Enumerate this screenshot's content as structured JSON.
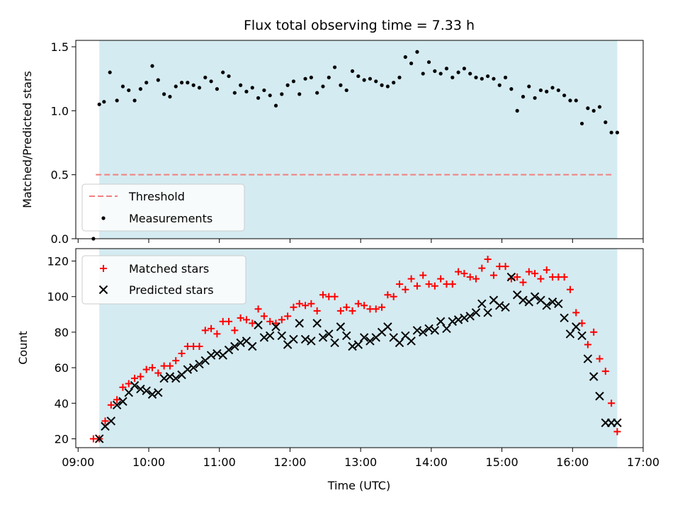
{
  "chart_data": {
    "type": "scatter",
    "title": "Flux total observing time = 7.33 h",
    "xlabel": "Time (UTC)",
    "x_ticks": [
      "09:00",
      "10:00",
      "11:00",
      "12:00",
      "13:00",
      "14:00",
      "15:00",
      "16:00",
      "17:00"
    ],
    "xlim_hours": [
      8.967,
      17.0
    ],
    "observing_window": {
      "start": "09:18",
      "end": "16:38",
      "color": "#d4ebf1"
    },
    "panels": [
      {
        "ylabel": "Matched/Predicted stars",
        "ylim": [
          0,
          1.55
        ],
        "y_ticks": [
          "0.0",
          "0.5",
          "1.0",
          "1.5"
        ],
        "legend_position": "lower-left",
        "series": [
          {
            "name": "Threshold",
            "kind": "dashed-line",
            "color": "#f08080",
            "x_start": "09:15",
            "x_end": "16:35",
            "y": 0.5
          },
          {
            "name": "Measurements",
            "kind": "dot",
            "color": "#000000",
            "x": [
              "09:13",
              "09:18",
              "09:22",
              "09:27",
              "09:33",
              "09:38",
              "09:43",
              "09:48",
              "09:53",
              "09:58",
              "10:03",
              "10:08",
              "10:13",
              "10:18",
              "10:23",
              "10:28",
              "10:33",
              "10:38",
              "10:43",
              "10:48",
              "10:53",
              "10:58",
              "11:03",
              "11:08",
              "11:13",
              "11:18",
              "11:23",
              "11:28",
              "11:33",
              "11:38",
              "11:43",
              "11:48",
              "11:53",
              "11:58",
              "12:03",
              "12:08",
              "12:13",
              "12:18",
              "12:23",
              "12:28",
              "12:33",
              "12:38",
              "12:43",
              "12:48",
              "12:53",
              "12:58",
              "13:03",
              "13:08",
              "13:13",
              "13:18",
              "13:23",
              "13:28",
              "13:33",
              "13:38",
              "13:43",
              "13:48",
              "13:53",
              "13:58",
              "14:03",
              "14:08",
              "14:13",
              "14:18",
              "14:23",
              "14:28",
              "14:33",
              "14:38",
              "14:43",
              "14:48",
              "14:53",
              "14:58",
              "15:03",
              "15:08",
              "15:13",
              "15:18",
              "15:23",
              "15:28",
              "15:33",
              "15:38",
              "15:43",
              "15:48",
              "15:53",
              "15:58",
              "16:03",
              "16:08",
              "16:13",
              "16:18",
              "16:23",
              "16:28",
              "16:33",
              "16:38"
            ],
            "y": [
              0.0,
              1.05,
              1.07,
              1.3,
              1.08,
              1.19,
              1.16,
              1.08,
              1.17,
              1.22,
              1.35,
              1.24,
              1.13,
              1.11,
              1.19,
              1.22,
              1.22,
              1.2,
              1.18,
              1.26,
              1.23,
              1.17,
              1.3,
              1.27,
              1.14,
              1.2,
              1.15,
              1.18,
              1.1,
              1.16,
              1.12,
              1.04,
              1.13,
              1.2,
              1.23,
              1.13,
              1.25,
              1.26,
              1.14,
              1.19,
              1.26,
              1.34,
              1.2,
              1.16,
              1.31,
              1.27,
              1.24,
              1.25,
              1.23,
              1.2,
              1.19,
              1.22,
              1.26,
              1.42,
              1.37,
              1.46,
              1.29,
              1.38,
              1.31,
              1.29,
              1.33,
              1.26,
              1.3,
              1.33,
              1.29,
              1.26,
              1.25,
              1.27,
              1.25,
              1.2,
              1.26,
              1.17,
              1.0,
              1.11,
              1.19,
              1.1,
              1.16,
              1.15,
              1.18,
              1.16,
              1.12,
              1.08,
              1.08,
              0.9,
              1.02,
              1.0,
              1.03,
              0.91,
              0.83,
              0.83
            ]
          }
        ]
      },
      {
        "ylabel": "Count",
        "ylim": [
          15,
          127
        ],
        "y_ticks": [
          "20",
          "40",
          "60",
          "80",
          "100",
          "120"
        ],
        "legend_position": "upper-left",
        "series": [
          {
            "name": "Matched stars",
            "kind": "plus",
            "color": "#ff0000",
            "x": [
              "09:13",
              "09:18",
              "09:23",
              "09:28",
              "09:33",
              "09:38",
              "09:43",
              "09:48",
              "09:53",
              "09:58",
              "10:03",
              "10:08",
              "10:13",
              "10:18",
              "10:23",
              "10:28",
              "10:33",
              "10:38",
              "10:43",
              "10:48",
              "10:53",
              "10:58",
              "11:03",
              "11:08",
              "11:13",
              "11:18",
              "11:23",
              "11:28",
              "11:33",
              "11:38",
              "11:43",
              "11:48",
              "11:53",
              "11:58",
              "12:03",
              "12:08",
              "12:13",
              "12:18",
              "12:23",
              "12:28",
              "12:33",
              "12:38",
              "12:43",
              "12:48",
              "12:53",
              "12:58",
              "13:03",
              "13:08",
              "13:13",
              "13:18",
              "13:23",
              "13:28",
              "13:33",
              "13:38",
              "13:43",
              "13:48",
              "13:53",
              "13:58",
              "14:03",
              "14:08",
              "14:13",
              "14:18",
              "14:23",
              "14:28",
              "14:33",
              "14:38",
              "14:43",
              "14:48",
              "14:53",
              "14:58",
              "15:03",
              "15:08",
              "15:13",
              "15:18",
              "15:23",
              "15:28",
              "15:33",
              "15:38",
              "15:43",
              "15:48",
              "15:53",
              "15:58",
              "16:03",
              "16:08",
              "16:13",
              "16:18",
              "16:23",
              "16:28",
              "16:33",
              "16:38"
            ],
            "y": [
              20,
              20,
              30,
              39,
              42,
              49,
              51,
              54,
              55,
              59,
              60,
              57,
              61,
              61,
              64,
              68,
              72,
              72,
              72,
              81,
              82,
              79,
              86,
              86,
              81,
              88,
              87,
              85,
              93,
              89,
              86,
              85,
              87,
              89,
              94,
              96,
              95,
              96,
              92,
              101,
              100,
              100,
              92,
              94,
              92,
              96,
              95,
              93,
              93,
              94,
              101,
              100,
              107,
              104,
              110,
              106,
              112,
              107,
              106,
              110,
              107,
              107,
              114,
              113,
              111,
              110,
              116,
              121,
              112,
              117,
              117,
              110,
              111,
              108,
              114,
              113,
              110,
              115,
              111,
              111,
              111,
              104,
              91,
              85,
              73,
              80,
              65,
              58,
              40,
              24
            ]
          },
          {
            "name": "Predicted stars",
            "kind": "x",
            "color": "#000000",
            "x": [
              "09:18",
              "09:23",
              "09:28",
              "09:33",
              "09:38",
              "09:43",
              "09:48",
              "09:53",
              "09:58",
              "10:03",
              "10:08",
              "10:13",
              "10:18",
              "10:23",
              "10:28",
              "10:33",
              "10:38",
              "10:43",
              "10:48",
              "10:53",
              "10:58",
              "11:03",
              "11:08",
              "11:13",
              "11:18",
              "11:23",
              "11:28",
              "11:33",
              "11:38",
              "11:43",
              "11:48",
              "11:53",
              "11:58",
              "12:03",
              "12:08",
              "12:13",
              "12:18",
              "12:23",
              "12:28",
              "12:33",
              "12:38",
              "12:43",
              "12:48",
              "12:53",
              "12:58",
              "13:03",
              "13:08",
              "13:13",
              "13:18",
              "13:23",
              "13:28",
              "13:33",
              "13:38",
              "13:43",
              "13:48",
              "13:53",
              "13:58",
              "14:03",
              "14:08",
              "14:13",
              "14:18",
              "14:23",
              "14:28",
              "14:33",
              "14:38",
              "14:43",
              "14:48",
              "14:53",
              "14:58",
              "15:03",
              "15:08",
              "15:13",
              "15:18",
              "15:23",
              "15:28",
              "15:33",
              "15:38",
              "15:43",
              "15:48",
              "15:53",
              "15:58",
              "16:03",
              "16:08",
              "16:13",
              "16:18",
              "16:23",
              "16:28",
              "16:33",
              "16:38"
            ],
            "y": [
              20,
              27,
              30,
              39,
              41,
              46,
              50,
              48,
              47,
              45,
              46,
              54,
              55,
              54,
              56,
              59,
              60,
              62,
              64,
              67,
              68,
              67,
              70,
              72,
              74,
              75,
              72,
              84,
              77,
              78,
              83,
              78,
              73,
              76,
              85,
              76,
              75,
              85,
              77,
              79,
              74,
              83,
              78,
              72,
              73,
              77,
              75,
              77,
              80,
              83,
              77,
              74,
              78,
              75,
              81,
              80,
              82,
              81,
              86,
              82,
              86,
              87,
              88,
              89,
              91,
              96,
              91,
              98,
              95,
              94,
              111,
              101,
              98,
              97,
              100,
              98,
              95,
              97,
              96,
              88,
              79,
              83,
              78,
              65,
              55,
              44,
              29,
              29,
              29
            ]
          }
        ]
      }
    ]
  }
}
